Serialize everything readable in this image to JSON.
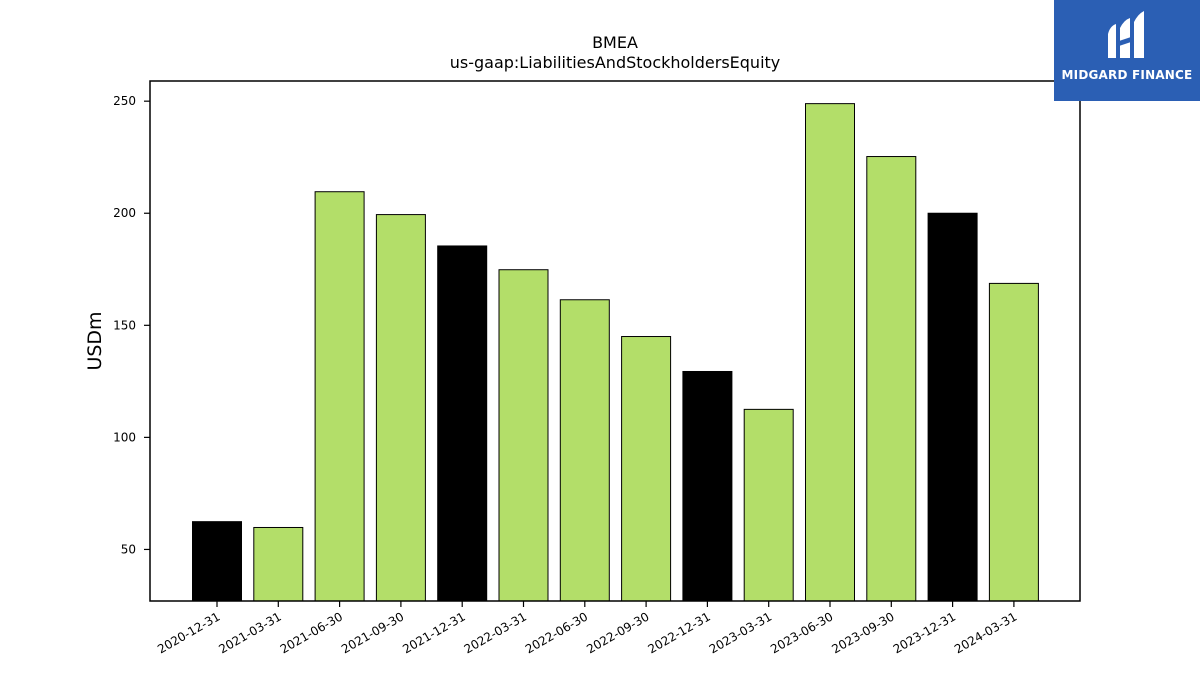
{
  "brand": {
    "name": "MIDGARD FINANCE",
    "color": "#2b5fb4"
  },
  "chart_data": {
    "type": "bar",
    "title": "BMEA",
    "subtitle": "us-gaap:LiabilitiesAndStockholdersEquity",
    "xlabel": "",
    "ylabel": "USDm",
    "ylim": [
      27,
      259
    ],
    "yticks": [
      50,
      100,
      150,
      200,
      250
    ],
    "categories": [
      "2020-12-31",
      "2021-03-31",
      "2021-06-30",
      "2021-09-30",
      "2021-12-31",
      "2022-03-31",
      "2022-06-30",
      "2022-09-30",
      "2022-12-31",
      "2023-03-31",
      "2023-06-30",
      "2023-09-30",
      "2023-12-31",
      "2024-03-31"
    ],
    "values": [
      62.4,
      59.8,
      209.6,
      199.4,
      185.4,
      174.8,
      161.4,
      145.0,
      129.4,
      112.5,
      248.9,
      225.3,
      200.0,
      168.7
    ],
    "bar_colors": [
      "#000000",
      "#b3de69",
      "#b3de69",
      "#b3de69",
      "#000000",
      "#b3de69",
      "#b3de69",
      "#b3de69",
      "#000000",
      "#b3de69",
      "#b3de69",
      "#b3de69",
      "#000000",
      "#b3de69"
    ],
    "grid": false,
    "legend": "none"
  }
}
